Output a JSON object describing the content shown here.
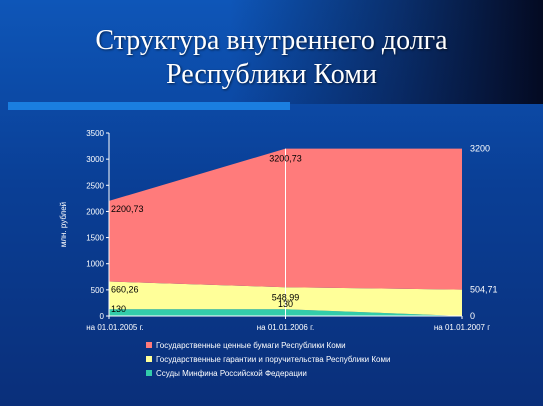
{
  "chart_data": {
    "type": "area",
    "stacked": true,
    "title_lines": [
      "Структура внутреннего долга",
      "Республики Коми"
    ],
    "ylabel": "млн. рублей",
    "ylim": [
      0,
      3500
    ],
    "yticks": [
      "0",
      "500",
      "1000",
      "1500",
      "2000",
      "2500",
      "3000",
      "3500"
    ],
    "categories": [
      "на 01.01.2005 г.",
      "на 01.01.2006 г.",
      "на 01.01.2007 г"
    ],
    "series": [
      {
        "name": "Ссуды Минфина Российской Федерации",
        "color": "#33ccaa",
        "values": [
          130,
          130,
          0
        ],
        "labels": [
          "130",
          "130",
          "0"
        ]
      },
      {
        "name": "Государственные гарантии и поручительства Республики Коми",
        "color": "#ffff99",
        "values": [
          530.26,
          418.99,
          504.71
        ],
        "labels": [
          "660,26",
          "548,99",
          "504,71"
        ]
      },
      {
        "name": "Государственные ценные бумаги Республики Коми",
        "color": "#ff7b7b",
        "values": [
          1540.47,
          2651.74,
          2695.29
        ],
        "labels": [
          "2200,73",
          "3200,73",
          "3200"
        ]
      }
    ],
    "legend_position": "bottom",
    "grid": false
  }
}
